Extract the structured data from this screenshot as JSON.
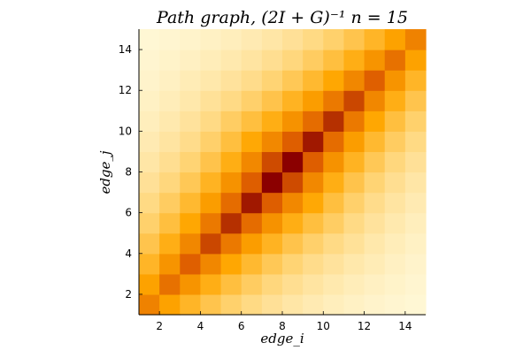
{
  "chart_data": {
    "type": "heatmap",
    "title": "Path graph, (2I + G)⁻¹  n = 15",
    "xlabel": "edge_i",
    "ylabel": "edge_j",
    "x_range": [
      1,
      15
    ],
    "y_range": [
      1,
      15
    ],
    "x_ticks": [
      2,
      4,
      6,
      8,
      10,
      12,
      14
    ],
    "y_ticks": [
      2,
      4,
      6,
      8,
      10,
      12,
      14
    ],
    "grid": false,
    "colormap": "heat",
    "color_stops": [
      "#fffde6",
      "#ffd67a",
      "#ffa600",
      "#e06000",
      "#8b0000"
    ],
    "cells_count": 14,
    "matrix_note": "symmetric, highest values on diagonal near center (cells 7-9), decaying away from diagonal"
  }
}
